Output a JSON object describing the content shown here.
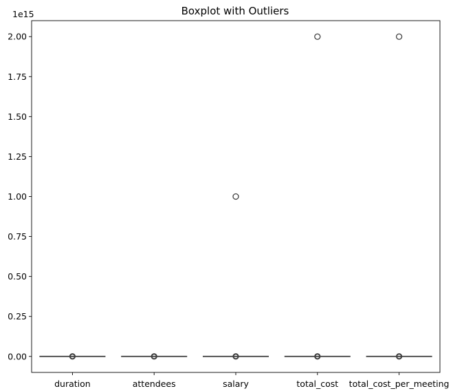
{
  "chart_data": {
    "type": "boxplot",
    "title": "Boxplot with Outliers",
    "xlabel": "",
    "ylabel": "",
    "y_scale_label": "1e15",
    "categories": [
      "duration",
      "attendees",
      "salary",
      "total_cost",
      "total_cost_per_meeting"
    ],
    "y_ticks": [
      0.0,
      0.25,
      0.5,
      0.75,
      1.0,
      1.25,
      1.5,
      1.75,
      2.0
    ],
    "y_tick_labels": [
      "0.00",
      "0.25",
      "0.50",
      "0.75",
      "1.00",
      "1.25",
      "1.50",
      "1.75",
      "2.00"
    ],
    "ylim": [
      -0.1,
      2.1
    ],
    "grid": false,
    "box_color": "#4c72b0",
    "series": [
      {
        "category": "duration",
        "median": 0,
        "q1": 0,
        "q3": 0,
        "whisker_low": 0,
        "whisker_high": 0,
        "outliers": [
          0
        ]
      },
      {
        "category": "attendees",
        "median": 0,
        "q1": 0,
        "q3": 0,
        "whisker_low": 0,
        "whisker_high": 0,
        "outliers": [
          0
        ]
      },
      {
        "category": "salary",
        "median": 0,
        "q1": 0,
        "q3": 0,
        "whisker_low": 0,
        "whisker_high": 0,
        "outliers": [
          0,
          1.0
        ]
      },
      {
        "category": "total_cost",
        "median": 0,
        "q1": 0,
        "q3": 0,
        "whisker_low": 0,
        "whisker_high": 0,
        "outliers": [
          0,
          2.0
        ]
      },
      {
        "category": "total_cost_per_meeting",
        "median": 0,
        "q1": 0,
        "q3": 0,
        "whisker_low": 0,
        "whisker_high": 0,
        "outliers": [
          0,
          2.0
        ]
      }
    ]
  }
}
